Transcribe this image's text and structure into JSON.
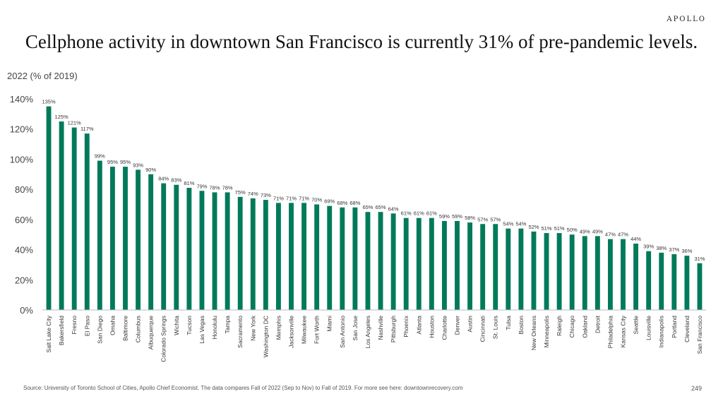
{
  "brand": "APOLLO",
  "title": "Cellphone activity in downtown San Francisco is currently 31% of pre-pandemic levels.",
  "source": "Source: University of Toronto School of Cities, Apollo Chief Economist. The data compares Fall of 2022 (Sep to Nov) to Fall of 2019. For more see here: downtownrecovery.com",
  "page_number": "249",
  "colors": {
    "bar": "#007a5a",
    "axis": "#bdbdbd"
  },
  "chart_data": {
    "type": "bar",
    "title": "Cellphone activity in downtown San Francisco is currently 31% of pre-pandemic levels.",
    "ylabel": "2022 (% of 2019)",
    "xlabel": "",
    "ylim": [
      0,
      140
    ],
    "yticks": [
      0,
      20,
      40,
      60,
      80,
      100,
      120,
      140
    ],
    "ytick_labels": [
      "0%",
      "20%",
      "40%",
      "60%",
      "80%",
      "100%",
      "120%",
      "140%"
    ],
    "grid": false,
    "categories": [
      "Salt Lake City",
      "Bakersfield",
      "Fresno",
      "El Paso",
      "San Diego",
      "Omaha",
      "Baltimore",
      "Columbus",
      "Albuquerque",
      "Colorado Springs",
      "Wichita",
      "Tucson",
      "Las Vegas",
      "Honolulu",
      "Tampa",
      "Sacramento",
      "New York",
      "Washington DC",
      "Memphis",
      "Jacksonville",
      "Milwaukee",
      "Fort Worth",
      "Miami",
      "San Antonio",
      "San Jose",
      "Los Angeles",
      "Nashville",
      "Pittsburgh",
      "Phoenix",
      "Atlanta",
      "Houston",
      "Charlotte",
      "Denver",
      "Austin",
      "Cincinnati",
      "St. Louis",
      "Tulsa",
      "Boston",
      "New Orleans",
      "Minneapolis",
      "Raleigh",
      "Chicago",
      "Oakland",
      "Detroit",
      "Philadelphia",
      "Kansas City",
      "Seattle",
      "Louisville",
      "Indianapolis",
      "Portland",
      "Cleveland",
      "San Francisco"
    ],
    "values": [
      135,
      125,
      121,
      117,
      99,
      95,
      95,
      93,
      90,
      84,
      83,
      81,
      79,
      78,
      78,
      75,
      74,
      73,
      71,
      71,
      71,
      70,
      69,
      68,
      68,
      65,
      65,
      64,
      61,
      61,
      61,
      59,
      59,
      58,
      57,
      57,
      54,
      54,
      52,
      51,
      51,
      50,
      49,
      49,
      47,
      47,
      44,
      39,
      38,
      37,
      36,
      31
    ],
    "value_labels": [
      "135%",
      "125%",
      "121%",
      "117%",
      "99%",
      "95%",
      "95%",
      "93%",
      "90%",
      "84%",
      "83%",
      "81%",
      "79%",
      "78%",
      "78%",
      "75%",
      "74%",
      "73%",
      "71%",
      "71%",
      "71%",
      "70%",
      "69%",
      "68%",
      "68%",
      "65%",
      "65%",
      "64%",
      "61%",
      "61%",
      "61%",
      "59%",
      "59%",
      "58%",
      "57%",
      "57%",
      "54%",
      "54%",
      "52%",
      "51%",
      "51%",
      "50%",
      "49%",
      "49%",
      "47%",
      "47%",
      "44%",
      "39%",
      "38%",
      "37%",
      "36%",
      "31%"
    ]
  }
}
